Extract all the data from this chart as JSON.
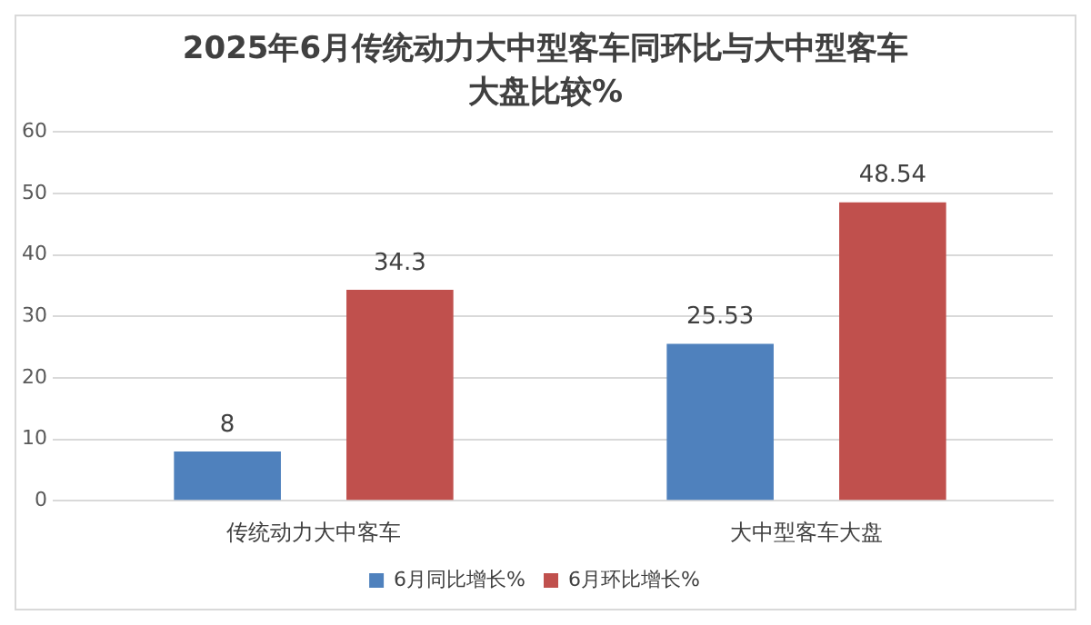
{
  "chart_data": {
    "type": "bar",
    "title": "2025年6月传统动力大中型客车同环比与大中型客车大盘比较%",
    "categories": [
      "传统动力大中客车",
      "大中型客车大盘"
    ],
    "series": [
      {
        "name": "6月同比增长%",
        "color": "#4f81bd",
        "values": [
          8,
          25.53
        ]
      },
      {
        "name": "6月环比增长%",
        "color": "#c0504d",
        "values": [
          34.3,
          48.54
        ]
      }
    ],
    "ylim": [
      0,
      60
    ],
    "yticks": [
      0,
      10,
      20,
      30,
      40,
      50,
      60
    ],
    "grid": "y",
    "legend": "bottom",
    "data_labels": true
  }
}
